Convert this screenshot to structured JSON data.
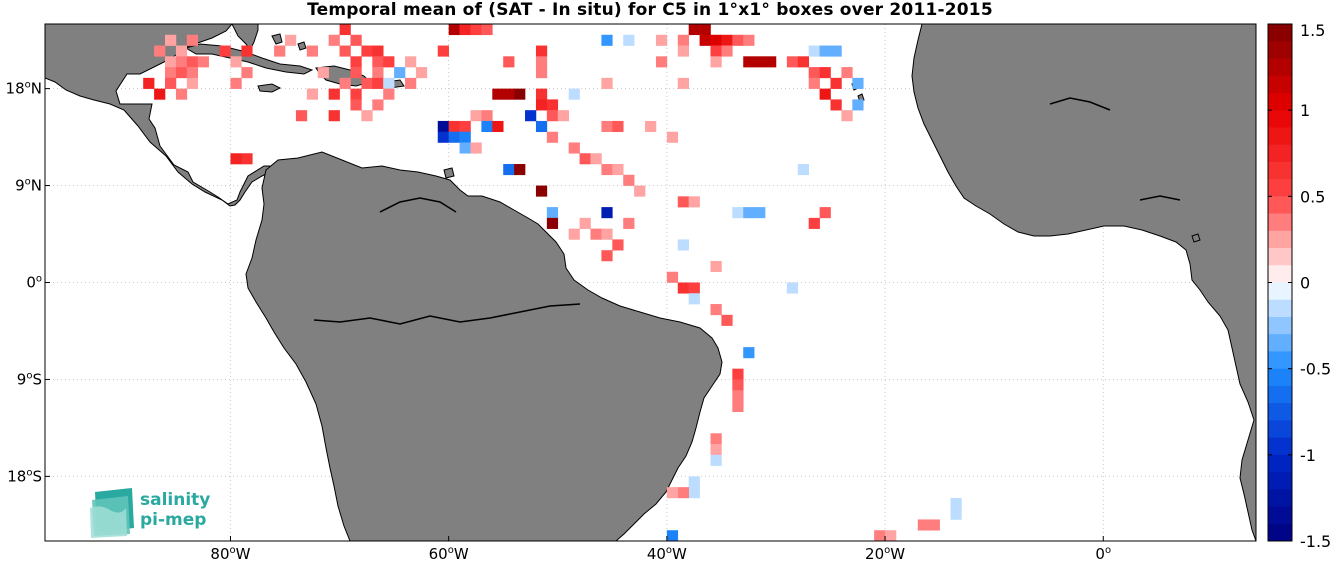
{
  "title": "Temporal mean of (SAT - In situ) for C5 in 1°x1° boxes over 2011-2015",
  "map": {
    "lon_range": [
      -97,
      14
    ],
    "lat_range": [
      -24,
      24
    ],
    "land_color": "#808080",
    "ocean_color": "#ffffff",
    "grid": "dotted"
  },
  "x_ticks": [
    {
      "lon": -80,
      "label": "80",
      "sup": "o",
      "hem": "W"
    },
    {
      "lon": -60,
      "label": "60",
      "sup": "o",
      "hem": "W"
    },
    {
      "lon": -40,
      "label": "40",
      "sup": "o",
      "hem": "W"
    },
    {
      "lon": -20,
      "label": "20",
      "sup": "o",
      "hem": "W"
    },
    {
      "lon": 0,
      "label": "0",
      "sup": "o",
      "hem": ""
    }
  ],
  "y_ticks": [
    {
      "lat": 18,
      "label": "18",
      "sup": "o",
      "hem": "N"
    },
    {
      "lat": 9,
      "label": "9",
      "sup": "o",
      "hem": "N"
    },
    {
      "lat": 0,
      "label": "0",
      "sup": "o",
      "hem": ""
    },
    {
      "lat": -9,
      "label": "9",
      "sup": "o",
      "hem": "S"
    },
    {
      "lat": -18,
      "label": "18",
      "sup": "o",
      "hem": "S"
    }
  ],
  "colorbar": {
    "min": -1.5,
    "max": 1.5,
    "steps": 30,
    "ticks": [
      {
        "value": 1.5,
        "label": "1.5"
      },
      {
        "value": 1,
        "label": "1"
      },
      {
        "value": 0.5,
        "label": "0.5"
      },
      {
        "value": 0,
        "label": "0"
      },
      {
        "value": -0.5,
        "label": "-0.5"
      },
      {
        "value": -1,
        "label": "-1"
      },
      {
        "value": -1.5,
        "label": "-1.5"
      }
    ]
  },
  "logo": {
    "line1": "salinity",
    "line2": "pi-mep"
  },
  "cells": [
    [
      -60,
      23,
      1.3
    ],
    [
      -59,
      23,
      0.7
    ],
    [
      -58,
      23,
      0.5
    ],
    [
      -57,
      23,
      0.4
    ],
    [
      -38,
      23,
      1.3
    ],
    [
      -37,
      23,
      1.2
    ],
    [
      -70,
      23,
      0.6
    ],
    [
      -36,
      22,
      1.0
    ],
    [
      -37,
      22,
      1.1
    ],
    [
      -35,
      22,
      0.8
    ],
    [
      -34,
      22,
      0.4
    ],
    [
      -33,
      22,
      0.3
    ],
    [
      -39,
      22,
      0.3
    ],
    [
      -41,
      22,
      0.2
    ],
    [
      -44,
      22,
      -0.2
    ],
    [
      -46,
      22,
      -0.5
    ],
    [
      -69,
      22,
      0.4
    ],
    [
      -71,
      22,
      0.3
    ],
    [
      -75,
      22,
      0.2
    ],
    [
      -84,
      22,
      0.3
    ],
    [
      -86,
      22,
      0.2
    ],
    [
      -87,
      21,
      0.3
    ],
    [
      -85,
      21,
      0.2
    ],
    [
      -81,
      21,
      0.5
    ],
    [
      -79,
      21,
      0.6
    ],
    [
      -76,
      21,
      0.3
    ],
    [
      -73,
      21,
      0.3
    ],
    [
      -70,
      21,
      0.4
    ],
    [
      -68,
      21,
      0.5
    ],
    [
      -67,
      21,
      0.6
    ],
    [
      -61,
      21,
      0.5
    ],
    [
      -52,
      21,
      0.6
    ],
    [
      -39,
      21,
      0.2
    ],
    [
      -36,
      21,
      0.5
    ],
    [
      -35,
      21,
      0.3
    ],
    [
      -27,
      21,
      -0.2
    ],
    [
      -26,
      21,
      -0.3
    ],
    [
      -25,
      21,
      -0.4
    ],
    [
      -86,
      20,
      0.2
    ],
    [
      -85,
      20,
      0.3
    ],
    [
      -84,
      20,
      0.4
    ],
    [
      -83,
      20,
      0.3
    ],
    [
      -80,
      20,
      0.2
    ],
    [
      -69,
      20,
      0.5
    ],
    [
      -67,
      20,
      0.4
    ],
    [
      -66,
      20,
      0.5
    ],
    [
      -64,
      20,
      0.2
    ],
    [
      -55,
      20,
      0.4
    ],
    [
      -52,
      20,
      0.3
    ],
    [
      -41,
      20,
      0.3
    ],
    [
      -36,
      20,
      0.2
    ],
    [
      -33,
      20,
      1.2
    ],
    [
      -32,
      20,
      1.3
    ],
    [
      -31,
      20,
      1.2
    ],
    [
      -29,
      20,
      0.4
    ],
    [
      -28,
      20,
      0.6
    ],
    [
      -86,
      19,
      0.3
    ],
    [
      -85,
      19,
      0.4
    ],
    [
      -84,
      19,
      0.3
    ],
    [
      -79,
      19,
      0.3
    ],
    [
      -72,
      19,
      0.2
    ],
    [
      -69,
      19,
      0.4
    ],
    [
      -67,
      19,
      0.3
    ],
    [
      -65,
      19,
      -0.3
    ],
    [
      -63,
      19,
      0.2
    ],
    [
      -52,
      19,
      0.3
    ],
    [
      -27,
      19,
      0.4
    ],
    [
      -26,
      19,
      0.6
    ],
    [
      -24,
      19,
      0.3
    ],
    [
      -88,
      18,
      0.7
    ],
    [
      -86,
      18,
      0.4
    ],
    [
      -84,
      18,
      0.2
    ],
    [
      -80,
      18,
      0.3
    ],
    [
      -70,
      18,
      0.3
    ],
    [
      -68,
      18,
      0.4
    ],
    [
      -67,
      18,
      0.5
    ],
    [
      -66,
      18,
      -0.2
    ],
    [
      -64,
      18,
      0.3
    ],
    [
      -46,
      18,
      0.2
    ],
    [
      -39,
      18,
      0.2
    ],
    [
      -27,
      18,
      0.3
    ],
    [
      -25,
      18,
      0.6
    ],
    [
      -23,
      18,
      -0.3
    ],
    [
      -87,
      17,
      0.8
    ],
    [
      -85,
      17,
      0.3
    ],
    [
      -73,
      17,
      0.2
    ],
    [
      -71,
      17,
      0.6
    ],
    [
      -69,
      17,
      0.5
    ],
    [
      -66,
      17,
      0.3
    ],
    [
      -56,
      17,
      1.2
    ],
    [
      -55,
      17,
      1.3
    ],
    [
      -54,
      17,
      1.4
    ],
    [
      -52,
      17,
      0.6
    ],
    [
      -49,
      17,
      -0.2
    ],
    [
      -26,
      17,
      0.8
    ],
    [
      -69,
      16,
      0.4
    ],
    [
      -67,
      16,
      0.3
    ],
    [
      -52,
      16,
      0.7
    ],
    [
      -51,
      16,
      0.6
    ],
    [
      -25,
      16,
      0.6
    ],
    [
      -23,
      16,
      -0.4
    ],
    [
      -74,
      15,
      0.4
    ],
    [
      -71,
      15,
      0.6
    ],
    [
      -68,
      15,
      0.2
    ],
    [
      -58,
      15,
      0.2
    ],
    [
      -57,
      15,
      0.3
    ],
    [
      -53,
      15,
      -0.9
    ],
    [
      -51,
      15,
      0.4
    ],
    [
      -50,
      15,
      0.2
    ],
    [
      -24,
      15,
      0.2
    ],
    [
      -61,
      14,
      -1.4
    ],
    [
      -60,
      14,
      0.6
    ],
    [
      -59,
      14,
      0.5
    ],
    [
      -57,
      14,
      -0.6
    ],
    [
      -56,
      14,
      0.8
    ],
    [
      -52,
      14,
      -0.7
    ],
    [
      -46,
      14,
      0.3
    ],
    [
      -45,
      14,
      0.4
    ],
    [
      -42,
      14,
      0.2
    ],
    [
      -61,
      13,
      -0.9
    ],
    [
      -60,
      13,
      -0.7
    ],
    [
      -59,
      13,
      -0.6
    ],
    [
      -51,
      13,
      0.3
    ],
    [
      -40,
      13,
      0.2
    ],
    [
      -59,
      12,
      -0.4
    ],
    [
      -58,
      12,
      0.2
    ],
    [
      -49,
      12,
      0.3
    ],
    [
      -80,
      11,
      0.7
    ],
    [
      -79,
      11,
      0.6
    ],
    [
      -48,
      11,
      0.4
    ],
    [
      -47,
      11,
      0.2
    ],
    [
      -55,
      10,
      -0.7
    ],
    [
      -54,
      10,
      1.4
    ],
    [
      -46,
      10,
      0.3
    ],
    [
      -45,
      10,
      0.2
    ],
    [
      -28,
      10,
      -0.2
    ],
    [
      -44,
      9,
      0.3
    ],
    [
      -52,
      8,
      1.4
    ],
    [
      -43,
      8,
      0.2
    ],
    [
      -39,
      7,
      0.4
    ],
    [
      -38,
      7,
      0.2
    ],
    [
      -51,
      6,
      -0.4
    ],
    [
      -46,
      6,
      -1.1
    ],
    [
      -34,
      6,
      -0.2
    ],
    [
      -33,
      6,
      -0.3
    ],
    [
      -32,
      6,
      -0.3
    ],
    [
      -26,
      6,
      0.4
    ],
    [
      -51,
      5,
      1.4
    ],
    [
      -48,
      5,
      0.2
    ],
    [
      -44,
      5,
      0.3
    ],
    [
      -27,
      5,
      0.5
    ],
    [
      -49,
      4,
      0.2
    ],
    [
      -47,
      4,
      0.3
    ],
    [
      -46,
      4,
      0.2
    ],
    [
      -45,
      3,
      0.4
    ],
    [
      -39,
      3,
      -0.2
    ],
    [
      -46,
      2,
      0.4
    ],
    [
      -36,
      1,
      0.2
    ],
    [
      -40,
      0,
      0.3
    ],
    [
      -39,
      -1,
      0.6
    ],
    [
      -38,
      -1,
      0.5
    ],
    [
      -29,
      -1,
      -0.2
    ],
    [
      -38,
      -2,
      -0.2
    ],
    [
      -36,
      -3,
      0.3
    ],
    [
      -35,
      -4,
      0.4
    ],
    [
      -33,
      -7,
      -0.5
    ],
    [
      -34,
      -9,
      0.5
    ],
    [
      -34,
      -10,
      0.4
    ],
    [
      -34,
      -11,
      0.3
    ],
    [
      -34,
      -12,
      0.3
    ],
    [
      -36,
      -15,
      0.3
    ],
    [
      -36,
      -16,
      0.2
    ],
    [
      -36,
      -17,
      -0.2
    ],
    [
      -38,
      -19,
      -0.2
    ],
    [
      -38,
      -20,
      -0.2
    ],
    [
      -39,
      -20,
      0.3
    ],
    [
      -40,
      -20,
      0.2
    ],
    [
      -14,
      -21,
      -0.2
    ],
    [
      -14,
      -22,
      -0.2
    ],
    [
      -17,
      -23,
      0.3
    ],
    [
      -16,
      -23,
      0.3
    ],
    [
      -21,
      -24,
      0.3
    ],
    [
      -20,
      -24,
      0.2
    ],
    [
      -40,
      -24,
      -0.6
    ]
  ]
}
